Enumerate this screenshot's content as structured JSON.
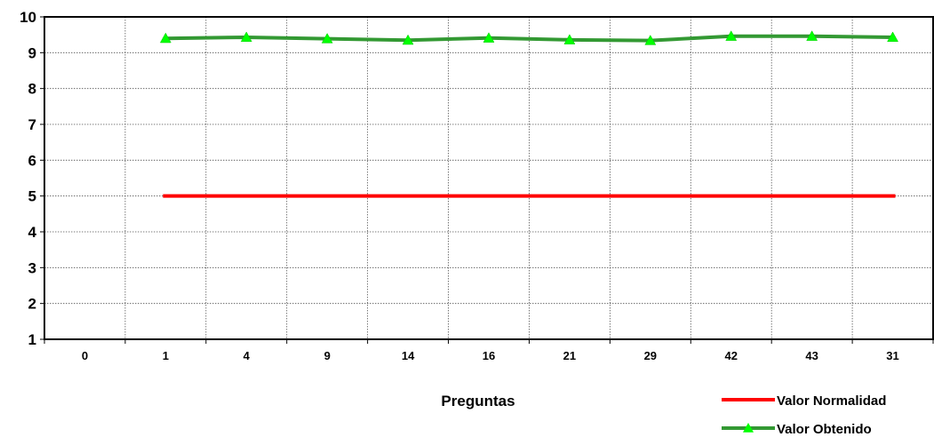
{
  "chart_data": {
    "type": "line",
    "categories": [
      "0",
      "1",
      "4",
      "9",
      "14",
      "16",
      "21",
      "29",
      "42",
      "43",
      "31"
    ],
    "series": [
      {
        "name": "Valor Normalidad",
        "color": "#ff0000",
        "marker": "none",
        "values": [
          null,
          5,
          5,
          5,
          5,
          5,
          5,
          5,
          5,
          5,
          5
        ]
      },
      {
        "name": "Valor Obtenido",
        "color": "#339933",
        "marker": "triangle",
        "marker_color": "#00ff00",
        "values": [
          null,
          9.4,
          9.43,
          9.39,
          9.35,
          9.41,
          9.36,
          9.34,
          9.46,
          9.46,
          9.43
        ]
      }
    ],
    "title": "",
    "xlabel": "Preguntas",
    "ylabel": "",
    "ylim": [
      1,
      10
    ],
    "yticks": [
      1,
      2,
      3,
      4,
      5,
      6,
      7,
      8,
      9,
      10
    ],
    "grid": true,
    "legend_position": "bottom-right"
  }
}
